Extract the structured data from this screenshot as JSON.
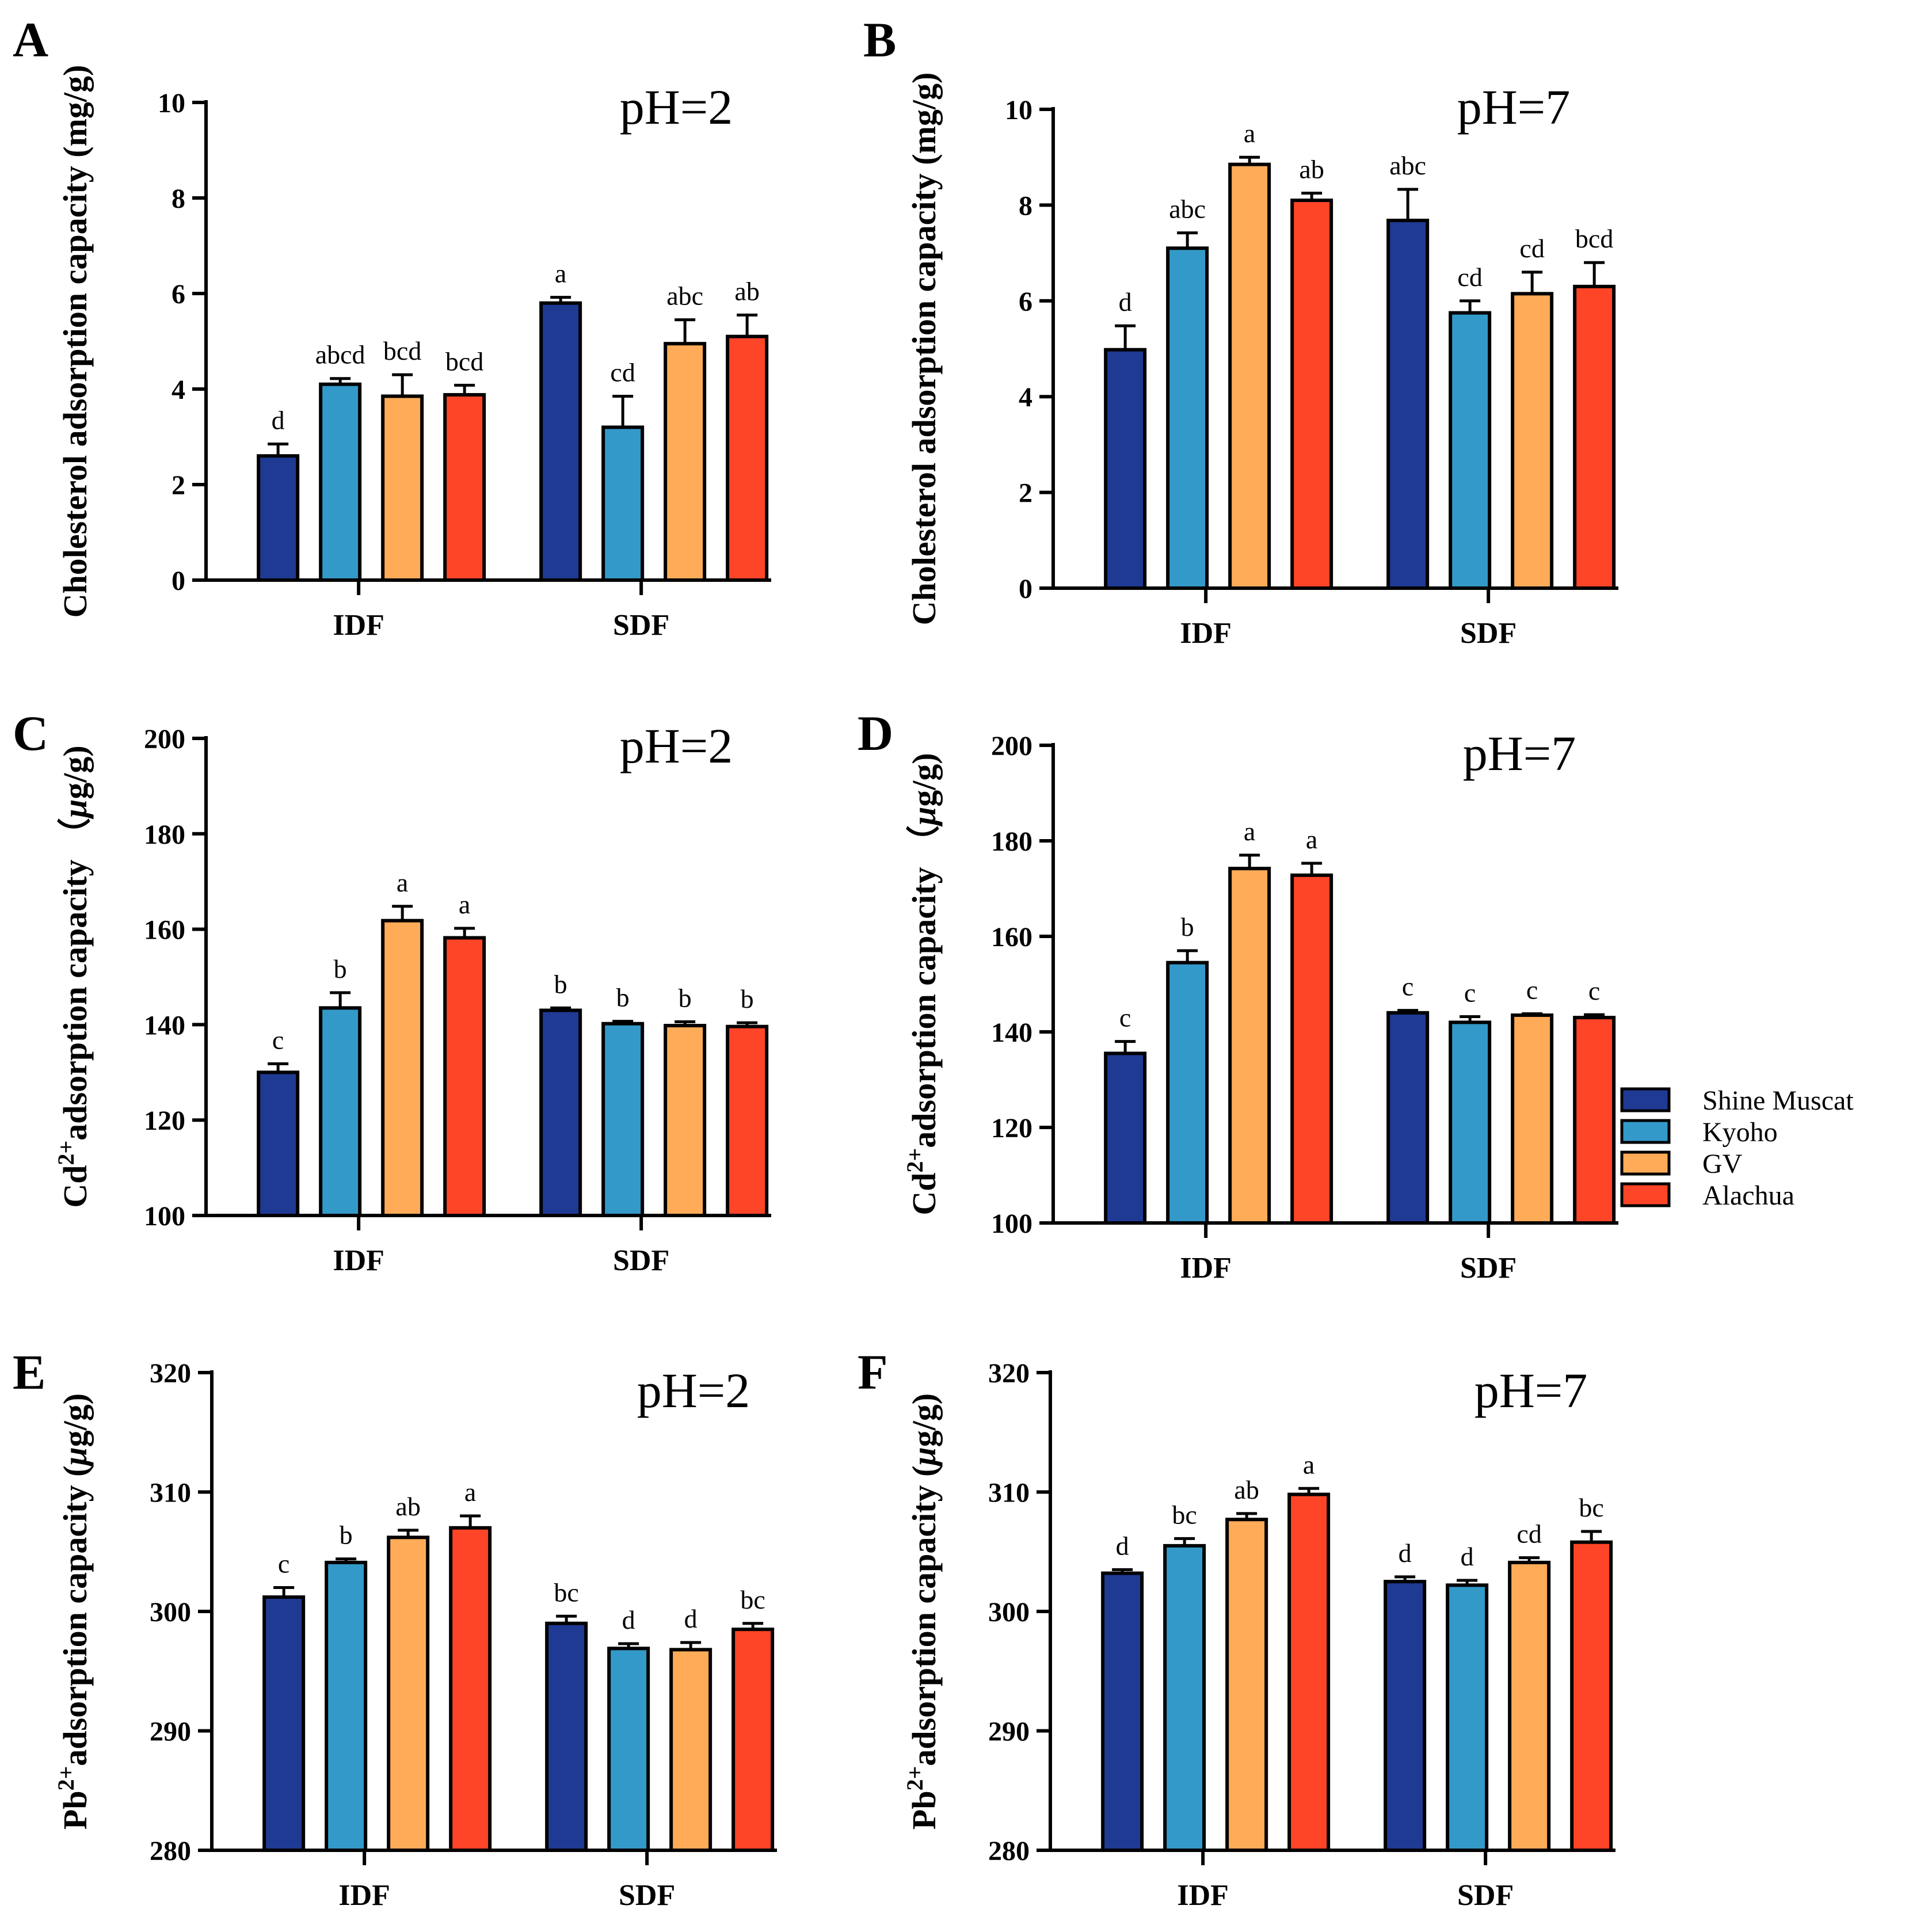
{
  "colors": {
    "Shine Muscat": "#1f3a93",
    "Kyoho": "#3399c9",
    "GV": "#ffab58",
    "Alachua": "#ff4527",
    "axis": "#000000"
  },
  "legend": {
    "entries": [
      "Shine Muscat",
      "Kyoho",
      "GV",
      "Alachua"
    ],
    "placement": "right"
  },
  "chart_data": [
    {
      "panel": "A",
      "type": "bar",
      "title": "pH=2",
      "ylabel": "Cholesterol adsorption capacity (mg/g)",
      "ylim": [
        0,
        10
      ],
      "yticks": [
        "0",
        "2",
        "4",
        "6",
        "8",
        "10"
      ],
      "categories": [
        "IDF",
        "SDF"
      ],
      "series": [
        {
          "name": "Shine Muscat",
          "values": [
            2.6,
            5.8
          ],
          "errors": [
            0.25,
            0.12
          ],
          "letters": [
            "d",
            "a"
          ]
        },
        {
          "name": "Kyoho",
          "values": [
            4.1,
            3.2
          ],
          "errors": [
            0.12,
            0.65
          ],
          "letters": [
            "abcd",
            "cd"
          ]
        },
        {
          "name": "GV",
          "values": [
            3.85,
            4.95
          ],
          "errors": [
            0.45,
            0.5
          ],
          "letters": [
            "bcd",
            "abc"
          ]
        },
        {
          "name": "Alachua",
          "values": [
            3.88,
            5.1
          ],
          "errors": [
            0.2,
            0.45
          ],
          "letters": [
            "bcd",
            "ab"
          ]
        }
      ]
    },
    {
      "panel": "B",
      "type": "bar",
      "title": "pH=7",
      "ylabel": "Cholesterol adsorption capacity (mg/g)",
      "ylim": [
        0,
        10
      ],
      "yticks": [
        "0",
        "2",
        "4",
        "6",
        "8",
        "10"
      ],
      "categories": [
        "IDF",
        "SDF"
      ],
      "series": [
        {
          "name": "Shine Muscat",
          "values": [
            4.98,
            7.68
          ],
          "errors": [
            0.5,
            0.65
          ],
          "letters": [
            "d",
            "abc"
          ]
        },
        {
          "name": "Kyoho",
          "values": [
            7.1,
            5.75
          ],
          "errors": [
            0.32,
            0.25
          ],
          "letters": [
            "abc",
            "cd"
          ]
        },
        {
          "name": "GV",
          "values": [
            8.85,
            6.15
          ],
          "errors": [
            0.15,
            0.45
          ],
          "letters": [
            "a",
            "cd"
          ]
        },
        {
          "name": "Alachua",
          "values": [
            8.1,
            6.3
          ],
          "errors": [
            0.15,
            0.5
          ],
          "letters": [
            "ab",
            "bcd"
          ]
        }
      ]
    },
    {
      "panel": "C",
      "type": "bar",
      "title": "pH=2",
      "ylabel_main": "Cd",
      "ylabel_sup": "2+",
      "ylabel_rest": "adsorption capacity （",
      "ylabel_unit_italic": "μ",
      "ylabel_unit_end": "g/g)",
      "ylim": [
        100,
        200
      ],
      "yticks": [
        "100",
        "120",
        "140",
        "160",
        "180",
        "200"
      ],
      "categories": [
        "IDF",
        "SDF"
      ],
      "series": [
        {
          "name": "Shine Muscat",
          "values": [
            130,
            143
          ],
          "errors": [
            1.8,
            0.5
          ],
          "letters": [
            "c",
            "b"
          ]
        },
        {
          "name": "Kyoho",
          "values": [
            143.5,
            140.2
          ],
          "errors": [
            3.2,
            0.5
          ],
          "letters": [
            "b",
            "b"
          ]
        },
        {
          "name": "GV",
          "values": [
            161.8,
            139.8
          ],
          "errors": [
            3.0,
            0.8
          ],
          "letters": [
            "a",
            "b"
          ]
        },
        {
          "name": "Alachua",
          "values": [
            158.2,
            139.6
          ],
          "errors": [
            2.0,
            0.8
          ],
          "letters": [
            "a",
            "b"
          ]
        }
      ]
    },
    {
      "panel": "D",
      "type": "bar",
      "title": "pH=7",
      "ylabel_main": "Cd",
      "ylabel_sup": "2+",
      "ylabel_rest": "adsorption capacity （",
      "ylabel_unit_italic": "μ",
      "ylabel_unit_end": "g/g)",
      "ylim": [
        100,
        200
      ],
      "yticks": [
        "100",
        "120",
        "140",
        "160",
        "180",
        "200"
      ],
      "categories": [
        "IDF",
        "SDF"
      ],
      "series": [
        {
          "name": "Shine Muscat",
          "values": [
            135.5,
            144
          ],
          "errors": [
            2.5,
            0.5
          ],
          "letters": [
            "c",
            "c"
          ]
        },
        {
          "name": "Kyoho",
          "values": [
            154.5,
            142
          ],
          "errors": [
            2.5,
            1.2
          ],
          "letters": [
            "b",
            "c"
          ]
        },
        {
          "name": "GV",
          "values": [
            174.2,
            143.5
          ],
          "errors": [
            2.8,
            0.3
          ],
          "letters": [
            "a",
            "c"
          ]
        },
        {
          "name": "Alachua",
          "values": [
            172.8,
            143
          ],
          "errors": [
            2.5,
            0.6
          ],
          "letters": [
            "a",
            "c"
          ]
        }
      ]
    },
    {
      "panel": "E",
      "type": "bar",
      "title": "pH=2",
      "ylabel_main": "Pb",
      "ylabel_sup": "2+",
      "ylabel_rest": "adsorption capacity (",
      "ylabel_unit_italic": "μ",
      "ylabel_unit_end": "g/g)",
      "ylim": [
        280,
        320
      ],
      "yticks": [
        "280",
        "290",
        "300",
        "310",
        "320"
      ],
      "categories": [
        "IDF",
        "SDF"
      ],
      "series": [
        {
          "name": "Shine Muscat",
          "values": [
            301.2,
            299
          ],
          "errors": [
            0.8,
            0.6
          ],
          "letters": [
            "c",
            "bc"
          ]
        },
        {
          "name": "Kyoho",
          "values": [
            304.1,
            296.9
          ],
          "errors": [
            0.3,
            0.4
          ],
          "letters": [
            "b",
            "d"
          ]
        },
        {
          "name": "GV",
          "values": [
            306.2,
            296.8
          ],
          "errors": [
            0.6,
            0.6
          ],
          "letters": [
            "ab",
            "d"
          ]
        },
        {
          "name": "Alachua",
          "values": [
            307,
            298.5
          ],
          "errors": [
            1.0,
            0.5
          ],
          "letters": [
            "a",
            "bc"
          ]
        }
      ]
    },
    {
      "panel": "F",
      "type": "bar",
      "title": "pH=7",
      "ylabel_main": "Pb",
      "ylabel_sup": "2+",
      "ylabel_rest": "adsorption capacity (",
      "ylabel_unit_italic": "μ",
      "ylabel_unit_end": "g/g)",
      "ylim": [
        280,
        320
      ],
      "yticks": [
        "280",
        "290",
        "300",
        "310",
        "320"
      ],
      "categories": [
        "IDF",
        "SDF"
      ],
      "series": [
        {
          "name": "Shine Muscat",
          "values": [
            303.2,
            302.5
          ],
          "errors": [
            0.3,
            0.4
          ],
          "letters": [
            "d",
            "d"
          ]
        },
        {
          "name": "Kyoho",
          "values": [
            305.5,
            302.2
          ],
          "errors": [
            0.6,
            0.4
          ],
          "letters": [
            "bc",
            "d"
          ]
        },
        {
          "name": "GV",
          "values": [
            307.7,
            304.1
          ],
          "errors": [
            0.5,
            0.4
          ],
          "letters": [
            "ab",
            "cd"
          ]
        },
        {
          "name": "Alachua",
          "values": [
            309.8,
            305.8
          ],
          "errors": [
            0.5,
            0.9
          ],
          "letters": [
            "a",
            "bc"
          ]
        }
      ]
    }
  ]
}
